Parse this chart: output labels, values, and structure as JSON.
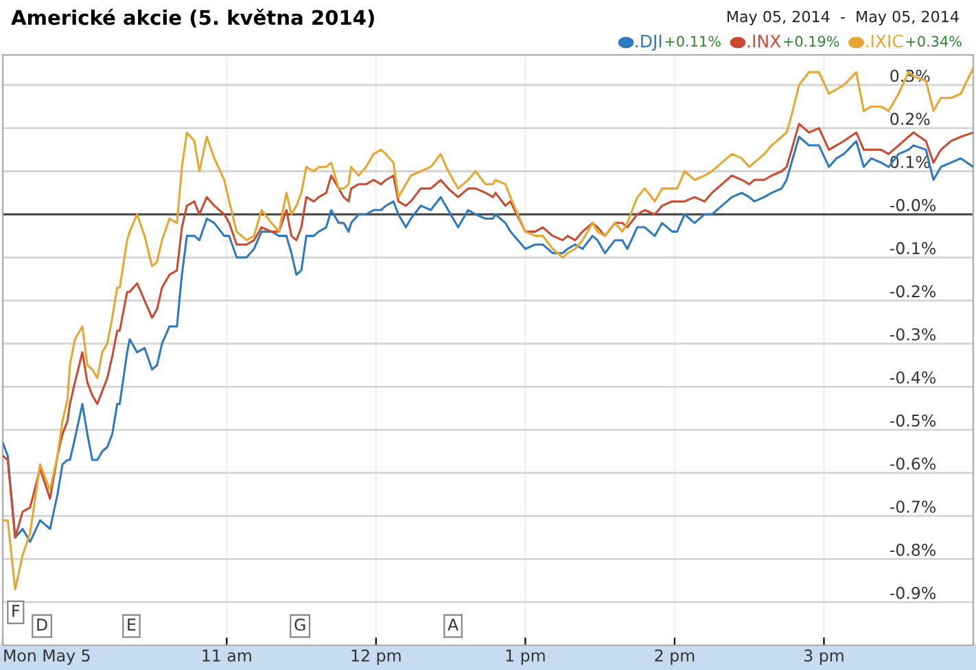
{
  "chart_data": {
    "type": "line",
    "title": "Americké akcie (5. května 2014)",
    "subtitle": "May 05, 2014  -  May 05, 2014",
    "x": [
      "2014-05-05T09:30",
      "2014-05-05T09:32",
      "2014-05-05T09:35",
      "2014-05-05T09:38",
      "2014-05-05T09:41",
      "2014-05-05T09:45",
      "2014-05-05T09:49",
      "2014-05-05T09:52",
      "2014-05-05T09:54",
      "2014-05-05T09:56",
      "2014-05-05T09:57",
      "2014-05-05T09:59",
      "2014-05-05T10:02",
      "2014-05-05T10:04",
      "2014-05-05T10:06",
      "2014-05-05T10:08",
      "2014-05-05T10:10",
      "2014-05-05T10:12",
      "2014-05-05T10:14",
      "2014-05-05T10:16",
      "2014-05-05T10:17",
      "2014-05-05T10:20",
      "2014-05-05T10:21",
      "2014-05-05T10:24",
      "2014-05-05T10:27",
      "2014-05-05T10:30",
      "2014-05-05T10:32",
      "2014-05-05T10:34",
      "2014-05-05T10:37",
      "2014-05-05T10:40",
      "2014-05-05T10:42",
      "2014-05-05T10:44",
      "2014-05-05T10:47",
      "2014-05-05T10:49",
      "2014-05-05T10:52",
      "2014-05-05T10:55",
      "2014-05-05T10:59",
      "2014-05-05T11:01",
      "2014-05-05T11:04",
      "2014-05-05T11:08",
      "2014-05-05T11:11",
      "2014-05-05T11:14",
      "2014-05-05T11:18",
      "2014-05-05T11:21",
      "2014-05-05T11:24",
      "2014-05-05T11:26",
      "2014-05-05T11:28",
      "2014-05-05T11:30",
      "2014-05-05T11:32",
      "2014-05-05T11:35",
      "2014-05-05T11:37",
      "2014-05-05T11:40",
      "2014-05-05T11:42",
      "2014-05-05T11:45",
      "2014-05-05T11:47",
      "2014-05-05T11:49",
      "2014-05-05T11:50",
      "2014-05-05T11:53",
      "2014-05-05T11:56",
      "2014-05-05T11:59",
      "2014-05-05T12:02",
      "2014-05-05T12:04",
      "2014-05-05T12:07",
      "2014-05-05T12:09",
      "2014-05-05T12:12",
      "2014-05-05T12:14",
      "2014-05-05T12:18",
      "2014-05-05T12:22",
      "2014-05-05T12:26",
      "2014-05-05T12:29",
      "2014-05-05T12:33",
      "2014-05-05T12:37",
      "2014-05-05T12:40",
      "2014-05-05T12:44",
      "2014-05-05T12:47",
      "2014-05-05T12:48",
      "2014-05-05T12:52",
      "2014-05-05T12:54",
      "2014-05-05T13:00",
      "2014-05-05T13:04",
      "2014-05-05T13:07",
      "2014-05-05T13:11",
      "2014-05-05T13:15",
      "2014-05-05T13:17",
      "2014-05-05T13:20",
      "2014-05-05T13:23",
      "2014-05-05T13:27",
      "2014-05-05T13:29",
      "2014-05-05T13:32",
      "2014-05-05T13:36",
      "2014-05-05T13:39",
      "2014-05-05T13:41",
      "2014-05-05T13:45",
      "2014-05-05T13:48",
      "2014-05-05T13:52",
      "2014-05-05T13:55",
      "2014-05-05T13:59",
      "2014-05-05T14:01",
      "2014-05-05T14:04",
      "2014-05-05T14:08",
      "2014-05-05T14:12",
      "2014-05-05T14:15",
      "2014-05-05T14:19",
      "2014-05-05T14:23",
      "2014-05-05T14:27",
      "2014-05-05T14:30",
      "2014-05-05T14:32",
      "2014-05-05T14:36",
      "2014-05-05T14:39",
      "2014-05-05T14:43",
      "2014-05-05T14:45",
      "2014-05-05T14:47",
      "2014-05-05T14:50",
      "2014-05-05T14:54",
      "2014-05-05T14:58",
      "2014-05-05T15:02",
      "2014-05-05T15:05",
      "2014-05-05T15:08",
      "2014-05-05T15:13",
      "2014-05-05T15:16",
      "2014-05-05T15:19",
      "2014-05-05T15:23",
      "2014-05-05T15:26",
      "2014-05-05T15:30",
      "2014-05-05T15:34",
      "2014-05-05T15:36",
      "2014-05-05T15:41",
      "2014-05-05T15:44",
      "2014-05-05T15:47",
      "2014-05-05T15:51",
      "2014-05-05T15:55",
      "2014-05-05T16:00"
    ],
    "series": [
      {
        "name": ".DJI",
        "color": "#2f79c0",
        "values": [
          -0.53,
          -0.56,
          -0.75,
          -0.73,
          -0.76,
          -0.71,
          -0.73,
          -0.65,
          -0.58,
          -0.57,
          -0.57,
          -0.52,
          -0.44,
          -0.51,
          -0.57,
          -0.57,
          -0.55,
          -0.54,
          -0.51,
          -0.44,
          -0.44,
          -0.32,
          -0.29,
          -0.32,
          -0.31,
          -0.36,
          -0.35,
          -0.3,
          -0.26,
          -0.26,
          -0.14,
          -0.05,
          -0.05,
          -0.06,
          -0.01,
          -0.02,
          -0.05,
          -0.05,
          -0.1,
          -0.1,
          -0.08,
          -0.04,
          -0.04,
          -0.05,
          -0.05,
          -0.09,
          -0.14,
          -0.13,
          -0.05,
          -0.05,
          -0.04,
          -0.03,
          0.01,
          -0.02,
          -0.02,
          -0.04,
          -0.02,
          0.0,
          0.0,
          0.01,
          0.01,
          0.02,
          0.03,
          0.0,
          -0.03,
          -0.01,
          0.02,
          0.01,
          0.04,
          0.01,
          -0.03,
          0.01,
          0.0,
          -0.01,
          -0.01,
          0.0,
          -0.02,
          -0.04,
          -0.08,
          -0.07,
          -0.07,
          -0.09,
          -0.09,
          -0.08,
          -0.07,
          -0.08,
          -0.05,
          -0.06,
          -0.09,
          -0.06,
          -0.06,
          -0.08,
          -0.03,
          -0.03,
          -0.05,
          -0.02,
          -0.04,
          -0.04,
          0.0,
          -0.02,
          0.0,
          0.0,
          0.02,
          0.04,
          0.05,
          0.04,
          0.03,
          0.04,
          0.05,
          0.06,
          0.08,
          0.12,
          0.18,
          0.16,
          0.16,
          0.11,
          0.13,
          0.14,
          0.17,
          0.11,
          0.13,
          0.12,
          0.11,
          0.14,
          0.15,
          0.16,
          0.15,
          0.08,
          0.11,
          0.12,
          0.13,
          0.11
        ]
      },
      {
        "name": ".INX",
        "color": "#cc4b30",
        "values": [
          -0.56,
          -0.57,
          -0.75,
          -0.69,
          -0.68,
          -0.59,
          -0.66,
          -0.56,
          -0.51,
          -0.48,
          -0.44,
          -0.39,
          -0.32,
          -0.39,
          -0.42,
          -0.44,
          -0.41,
          -0.38,
          -0.33,
          -0.27,
          -0.27,
          -0.18,
          -0.18,
          -0.16,
          -0.2,
          -0.24,
          -0.22,
          -0.17,
          -0.14,
          -0.13,
          -0.03,
          0.02,
          0.03,
          0.0,
          0.04,
          0.02,
          0.0,
          -0.02,
          -0.07,
          -0.07,
          -0.06,
          -0.03,
          -0.04,
          -0.04,
          0.01,
          -0.05,
          -0.06,
          -0.03,
          0.04,
          0.03,
          0.04,
          0.05,
          0.09,
          0.06,
          0.04,
          0.03,
          0.06,
          0.07,
          0.07,
          0.08,
          0.07,
          0.08,
          0.09,
          0.03,
          0.02,
          0.03,
          0.06,
          0.06,
          0.08,
          0.06,
          0.04,
          0.06,
          0.06,
          0.05,
          0.04,
          0.05,
          0.02,
          0.03,
          -0.04,
          -0.04,
          -0.03,
          -0.05,
          -0.06,
          -0.05,
          -0.06,
          -0.04,
          -0.02,
          -0.03,
          -0.05,
          -0.02,
          -0.02,
          -0.03,
          0.0,
          0.01,
          0.0,
          0.02,
          0.03,
          0.03,
          0.03,
          0.04,
          0.03,
          0.05,
          0.07,
          0.09,
          0.08,
          0.07,
          0.08,
          0.08,
          0.09,
          0.1,
          0.11,
          0.15,
          0.21,
          0.19,
          0.2,
          0.15,
          0.16,
          0.17,
          0.19,
          0.15,
          0.15,
          0.15,
          0.14,
          0.16,
          0.18,
          0.19,
          0.17,
          0.12,
          0.15,
          0.17,
          0.18,
          0.19
        ]
      },
      {
        "name": ".IXIC",
        "color": "#e6a630",
        "values": [
          -0.71,
          -0.71,
          -0.87,
          -0.79,
          -0.74,
          -0.58,
          -0.64,
          -0.56,
          -0.48,
          -0.43,
          -0.35,
          -0.29,
          -0.26,
          -0.35,
          -0.36,
          -0.38,
          -0.32,
          -0.3,
          -0.24,
          -0.17,
          -0.17,
          -0.06,
          -0.04,
          0.0,
          -0.05,
          -0.12,
          -0.11,
          -0.06,
          -0.01,
          -0.02,
          0.11,
          0.19,
          0.17,
          0.1,
          0.18,
          0.13,
          0.08,
          0.03,
          -0.04,
          -0.06,
          -0.05,
          0.01,
          -0.02,
          -0.04,
          0.05,
          0.0,
          0.02,
          0.05,
          0.11,
          0.1,
          0.11,
          0.11,
          0.12,
          0.06,
          0.06,
          0.07,
          0.11,
          0.09,
          0.11,
          0.14,
          0.15,
          0.14,
          0.12,
          0.04,
          0.07,
          0.09,
          0.1,
          0.11,
          0.14,
          0.1,
          0.06,
          0.08,
          0.1,
          0.07,
          0.07,
          0.08,
          0.07,
          0.04,
          -0.04,
          -0.05,
          -0.05,
          -0.08,
          -0.1,
          -0.09,
          -0.08,
          -0.06,
          -0.02,
          -0.04,
          -0.05,
          -0.02,
          -0.04,
          -0.02,
          0.04,
          0.06,
          0.03,
          0.06,
          0.06,
          0.06,
          0.1,
          0.08,
          0.09,
          0.1,
          0.12,
          0.14,
          0.13,
          0.11,
          0.12,
          0.14,
          0.16,
          0.18,
          0.19,
          0.23,
          0.3,
          0.33,
          0.33,
          0.28,
          0.29,
          0.3,
          0.33,
          0.24,
          0.25,
          0.25,
          0.24,
          0.28,
          0.33,
          0.32,
          0.31,
          0.24,
          0.27,
          0.27,
          0.28,
          0.34
        ]
      }
    ],
    "annotations": [
      "+0.11%",
      "+0.19%",
      "+0.34%",
      "F",
      "D",
      "E",
      "G",
      "A"
    ],
    "xlim": [
      "2014-05-05T09:30",
      "2014-05-05T16:00"
    ],
    "xticks": [
      {
        "value": "2014-05-05T09:30",
        "label": "Mon May 5"
      },
      {
        "value": "2014-05-05T11:00",
        "label": "11 am"
      },
      {
        "value": "2014-05-05T12:00",
        "label": "12 pm"
      },
      {
        "value": "2014-05-05T13:00",
        "label": "1 pm"
      },
      {
        "value": "2014-05-05T14:00",
        "label": "2 pm"
      },
      {
        "value": "2014-05-05T15:00",
        "label": "3 pm"
      }
    ],
    "ylim": [
      -1.0,
      0.37
    ],
    "yticks": [
      {
        "value": 0.3,
        "label": "0.3%"
      },
      {
        "value": 0.2,
        "label": "0.2%"
      },
      {
        "value": 0.1,
        "label": "0.1%"
      },
      {
        "value": 0,
        "label": "-0.0%"
      },
      {
        "value": -0.1,
        "label": "-0.1%"
      },
      {
        "value": -0.2,
        "label": "-0.2%"
      },
      {
        "value": -0.3,
        "label": "-0.3%"
      },
      {
        "value": -0.4,
        "label": "-0.4%"
      },
      {
        "value": -0.5,
        "label": "-0.5%"
      },
      {
        "value": -0.6,
        "label": "-0.6%"
      },
      {
        "value": -0.7,
        "label": "-0.7%"
      },
      {
        "value": -0.8,
        "label": "-0.8%"
      },
      {
        "value": -0.9,
        "label": "-0.9%"
      }
    ],
    "ref_lines": [
      {
        "axis": "y",
        "value": 0,
        "color": "#444444"
      }
    ],
    "grid": true,
    "legend": "top right",
    "marker": "none",
    "line_style": "solid"
  }
}
